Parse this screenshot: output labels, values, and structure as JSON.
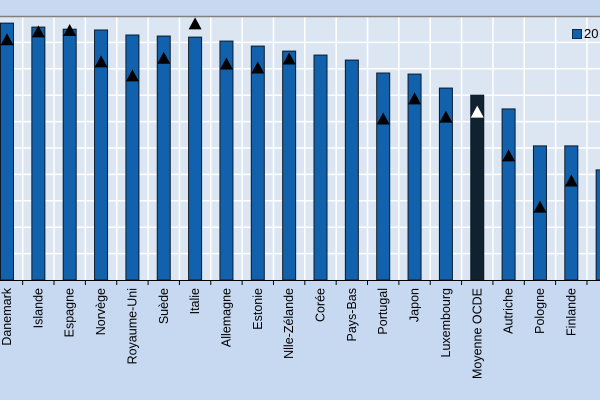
{
  "chart_data": {
    "type": "bar",
    "title": "",
    "xlabel": "",
    "ylabel": "",
    "ylim": [
      0,
      10
    ],
    "grid": true,
    "y_tick_labels_visible": false,
    "legend": {
      "placement": "top-right",
      "entries": [
        {
          "label": "20",
          "marker": "square",
          "color": "#1261ac"
        }
      ]
    },
    "categories": [
      "Danemark",
      "Islande",
      "Espagne",
      "Norvège",
      "Royaume-Uni",
      "Suède",
      "Italie",
      "Allemagne",
      "Estonie",
      "Nlle-Zélande",
      "Corée",
      "Pays-Bas",
      "Portugal",
      "Japon",
      "Luxembourg",
      "Moyenne OCDE",
      "Autriche",
      "Pologne",
      "Finlande",
      ""
    ],
    "series": [
      {
        "type": "bar",
        "values": [
          9.73,
          9.58,
          9.5,
          9.47,
          9.28,
          9.24,
          9.2,
          9.05,
          8.86,
          8.67,
          8.52,
          8.33,
          7.84,
          7.8,
          7.27,
          7.0,
          6.48,
          5.08,
          5.08,
          4.17
        ]
      },
      {
        "type": "triangle-marker",
        "values": [
          9.1,
          9.4,
          9.45,
          8.26,
          7.73,
          8.4,
          9.7,
          8.18,
          8.03,
          8.37,
          null,
          null,
          6.1,
          6.86,
          6.17,
          6.36,
          4.7,
          2.76,
          3.75,
          null
        ]
      }
    ],
    "highlight_category": "Moyenne OCDE",
    "colors": {
      "bar": "#1261ac",
      "highlight_bar": "#10212f",
      "marker": "#000000",
      "highlight_marker": "#ffffff",
      "plot_bg": "#dce6f2",
      "page_bg": "#c6d9f1",
      "grid": "#ffffff"
    }
  }
}
